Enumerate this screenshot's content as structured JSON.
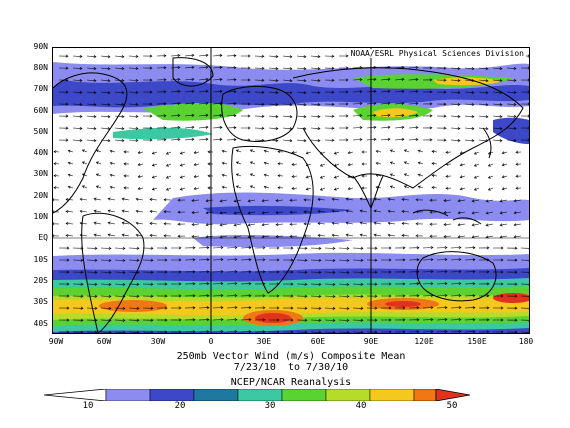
{
  "credit": "NOAA/ESRL Physical Sciences Division",
  "title_lines": [
    "250mb Vector Wind (m/s) Composite Mean",
    "7/23/10  to 7/30/10",
    "NCEP/NCAR Reanalysis"
  ],
  "lat_labels": [
    "90N",
    "80N",
    "70N",
    "60N",
    "50N",
    "40N",
    "30N",
    "20N",
    "10N",
    "EQ",
    "10S",
    "20S",
    "30S",
    "40S"
  ],
  "lon_labels": [
    "90W",
    "60W",
    "30W",
    "0",
    "30E",
    "60E",
    "90E",
    "120E",
    "150E",
    "180"
  ],
  "colorbar_ticks": [
    "10",
    "20",
    "30",
    "40",
    "50"
  ],
  "colors": {
    "c10": "#8c8cf0",
    "c15": "#3c48c8",
    "c20": "#1e78a0",
    "c25": "#3cc8a0",
    "c30": "#5ad232",
    "c35": "#b4dc28",
    "c40": "#f5c81e",
    "c45": "#f07814",
    "c50": "#e1321e",
    "c55": "#b40a0a"
  }
}
